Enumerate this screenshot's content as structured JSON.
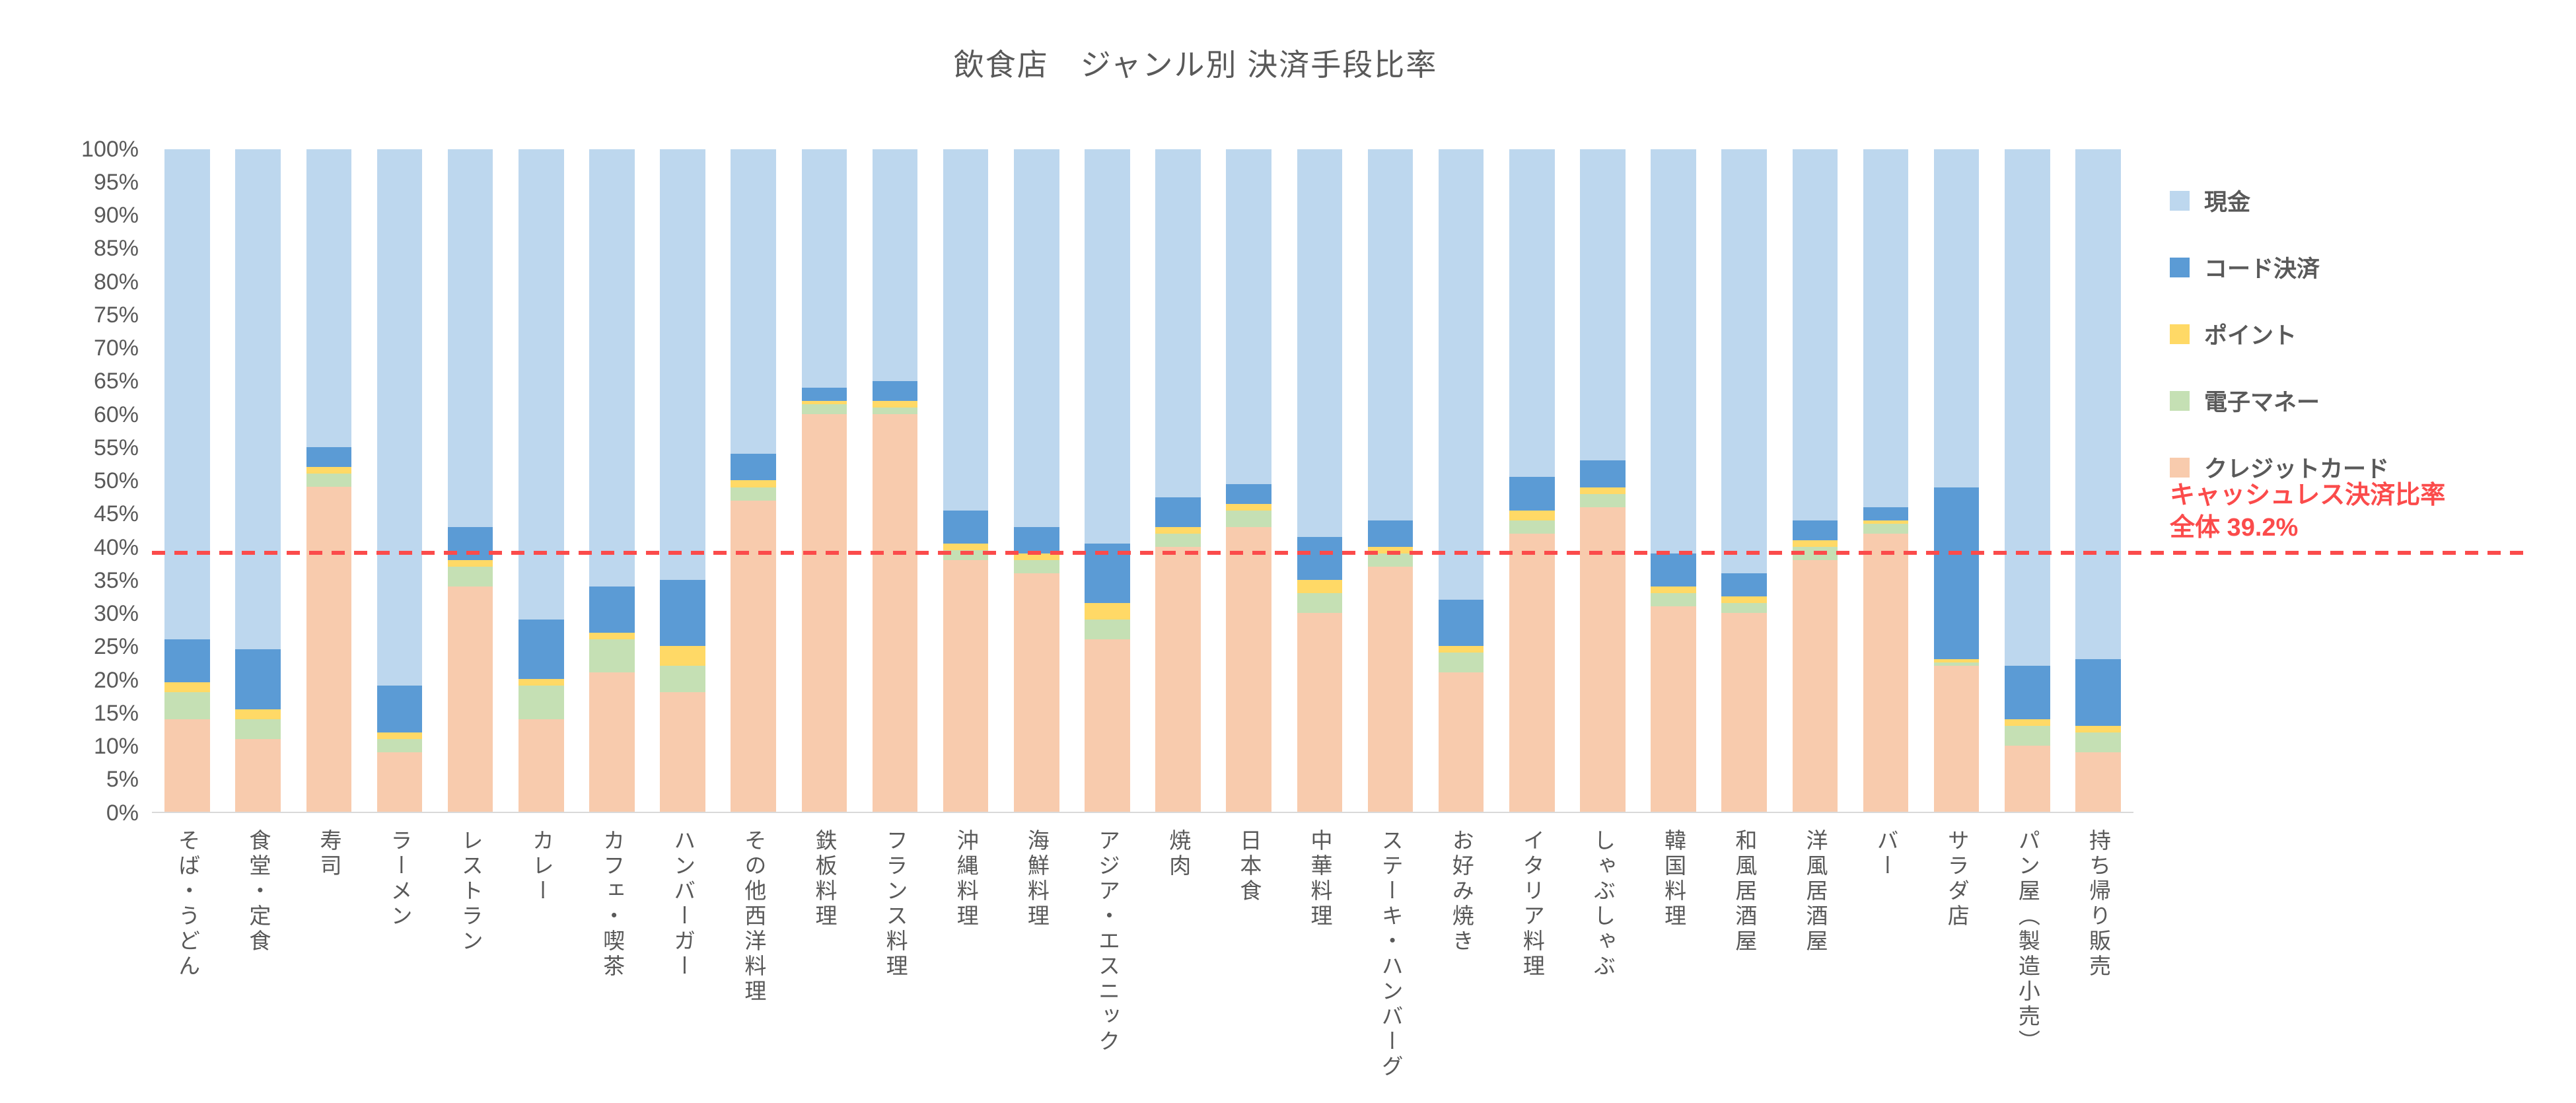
{
  "title": "飲食店　ジャンル別 決済手段比率",
  "annotation": {
    "line1": "キャッシュレス決済比率",
    "line2": "全体 39.2%",
    "value": 39.2,
    "color": "#FB4B4B"
  },
  "axis": {
    "y_suffix": "%"
  },
  "chart_data": {
    "type": "bar",
    "stacked": true,
    "percent_stacked": true,
    "title": "飲食店　ジャンル別 決済手段比率",
    "xlabel": "",
    "ylabel": "",
    "ylim": [
      0,
      100
    ],
    "ytick_step": 5,
    "ytick_suffix": "%",
    "grid": false,
    "legend_position": "right",
    "stack_order_top_to_bottom": [
      "現金",
      "コード決済",
      "ポイント",
      "電子マネー",
      "クレジットカード"
    ],
    "categories": [
      "そば・うどん",
      "食堂・定食",
      "寿司",
      "ラーメン",
      "レストラン",
      "カレー",
      "カフェ・喫茶",
      "ハンバーガー",
      "その他西洋料理",
      "鉄板料理",
      "フランス料理",
      "沖縄料理",
      "海鮮料理",
      "アジア・エスニック",
      "焼肉",
      "日本食",
      "中華料理",
      "ステーキ・ハンバーグ",
      "お好み焼き",
      "イタリア料理",
      "しゃぶしゃぶ",
      "韓国料理",
      "和風居酒屋",
      "洋風居酒屋",
      "バー",
      "サラダ店",
      "パン屋（製造小売）",
      "持ち帰り販売"
    ],
    "series": [
      {
        "name": "現金",
        "color": "#BDD7EE",
        "values": [
          74,
          75.5,
          45,
          81,
          57,
          71,
          66,
          65,
          46,
          36,
          35,
          54.5,
          57,
          59.5,
          52.5,
          50.5,
          58.5,
          56,
          68,
          49.5,
          47,
          61,
          64,
          56,
          54,
          51,
          78,
          77
        ]
      },
      {
        "name": "コード決済",
        "color": "#5B9BD5",
        "values": [
          6.5,
          9,
          3,
          7,
          5,
          9,
          7,
          10,
          4,
          2,
          3,
          5,
          4,
          9,
          4.5,
          3,
          6.5,
          4,
          7,
          5,
          4,
          5,
          3.5,
          3,
          2,
          26,
          8,
          10
        ]
      },
      {
        "name": "ポイント",
        "color": "#FFD966",
        "values": [
          1.5,
          1.5,
          1,
          1,
          1,
          1,
          1,
          3,
          1,
          0.5,
          1,
          1,
          1,
          2.5,
          1,
          1,
          2,
          1,
          1,
          1.5,
          1,
          1,
          1,
          1,
          0.5,
          0.5,
          1,
          1
        ]
      },
      {
        "name": "電子マネー",
        "color": "#C5E0B4",
        "values": [
          4,
          3,
          2,
          2,
          3,
          5,
          5,
          4,
          2,
          1.5,
          1,
          1.5,
          2,
          3,
          2,
          2.5,
          3,
          2,
          3,
          2,
          2,
          2,
          1.5,
          2,
          1.5,
          0.5,
          3,
          3
        ]
      },
      {
        "name": "クレジットカード",
        "color": "#F8CBAD",
        "values": [
          14,
          11,
          49,
          9,
          34,
          14,
          21,
          18,
          47,
          60,
          60,
          38,
          36,
          26,
          40,
          43,
          30,
          37,
          21,
          42,
          46,
          31,
          30,
          38,
          42,
          22,
          10,
          9
        ]
      }
    ],
    "reference_line": {
      "value": 39.2,
      "style": "dashed",
      "color": "#FB4B4B",
      "label": "キャッシュレス決済比率 全体 39.2%"
    }
  }
}
